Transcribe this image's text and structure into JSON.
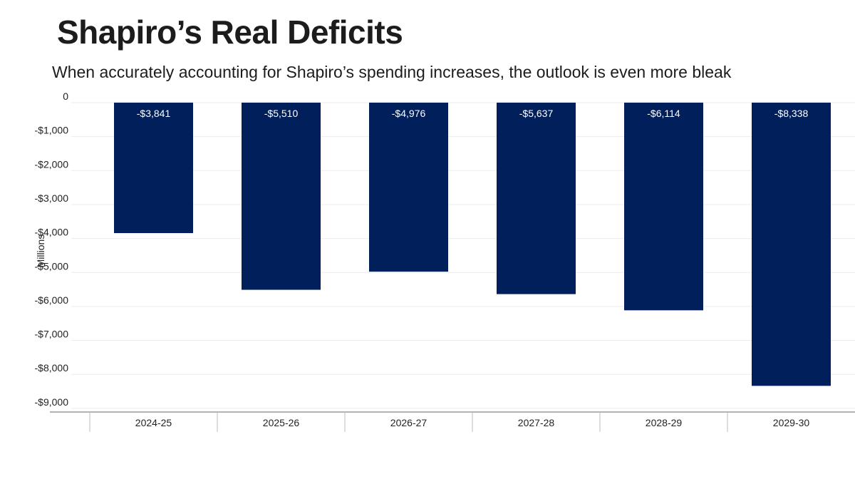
{
  "chart_data": {
    "type": "bar",
    "title": "Shapiro’s Real Deficits",
    "subtitle": "When accurately accounting for Shapiro’s spending increases, the outlook is even more bleak",
    "ylabel": "Millions",
    "xlabel": "",
    "categories": [
      "2024-25",
      "2025-26",
      "2026-27",
      "2027-28",
      "2028-29",
      "2029-30"
    ],
    "values": [
      -3841,
      -5510,
      -4976,
      -5637,
      -6114,
      -8338
    ],
    "data_labels": [
      "-$3,841",
      "-$5,510",
      "-$4,976",
      "-$5,637",
      "-$6,114",
      "-$8,338"
    ],
    "yticks": [
      0,
      -1000,
      -2000,
      -3000,
      -4000,
      -5000,
      -6000,
      -7000,
      -8000,
      -9000
    ],
    "ytick_labels": [
      "0",
      "-$1,000",
      "-$2,000",
      "-$3,000",
      "-$4,000",
      "-$5,000",
      "-$6,000",
      "-$7,000",
      "-$8,000",
      "-$9,000"
    ],
    "ylim": [
      -9000,
      0
    ],
    "grid": true,
    "colors": {
      "bar": "#001f5b",
      "grid": "#ebebeb",
      "axis": "#999999"
    }
  }
}
